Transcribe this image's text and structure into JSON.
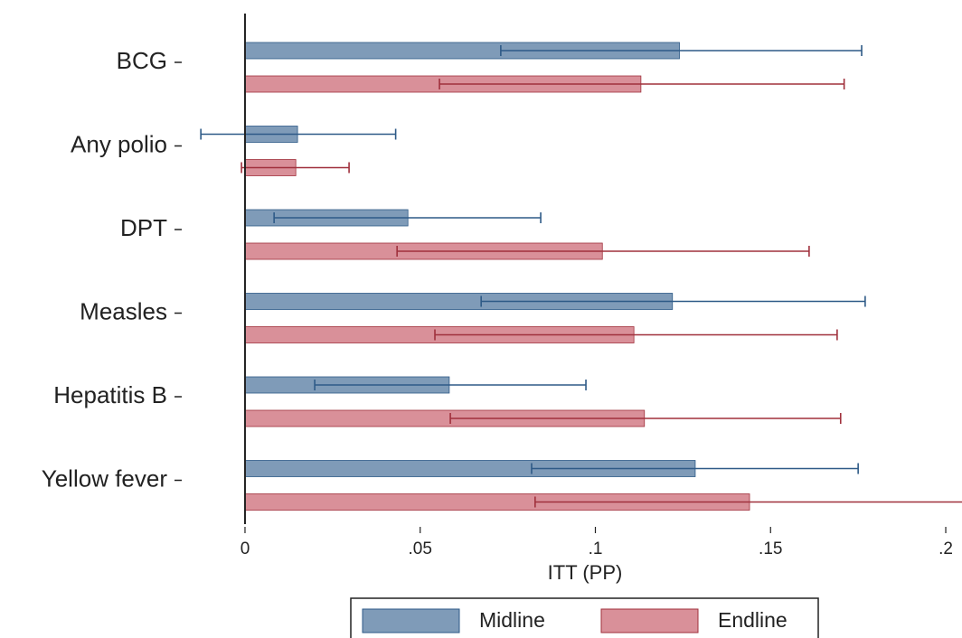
{
  "chart_data": {
    "type": "bar",
    "orientation": "horizontal",
    "categories": [
      "BCG",
      "Any polio",
      "DPT",
      "Measles",
      "Hepatitis B",
      "Yellow fever"
    ],
    "series": [
      {
        "name": "Midline",
        "color": "#7f9bb8",
        "error_color": "#2e5a87",
        "values": [
          0.124,
          0.015,
          0.0465,
          0.122,
          0.0583,
          0.1285
        ],
        "ci_low": [
          0.073,
          -0.0126,
          0.0083,
          0.0674,
          0.0199,
          0.0818
        ],
        "ci_high": [
          0.176,
          0.043,
          0.0844,
          0.177,
          0.0973,
          0.175
        ]
      },
      {
        "name": "Endline",
        "color": "#d99099",
        "error_color": "#a0303c",
        "values": [
          0.113,
          0.0145,
          0.102,
          0.111,
          0.114,
          0.144
        ],
        "ci_low": [
          0.0555,
          -0.001,
          0.0434,
          0.0542,
          0.0586,
          0.0828
        ],
        "ci_high": [
          0.171,
          0.0297,
          0.161,
          0.169,
          0.17,
          0.206
        ]
      }
    ],
    "x_label": "ITT (PP)",
    "xlim": [
      -0.013,
      0.205
    ],
    "xticks": [
      0,
      {
        "value": 0.05,
        "label": ".05"
      },
      {
        "value": 0.1,
        "label": ".1"
      },
      {
        "value": 0.15,
        "label": ".15"
      },
      {
        "value": 0.2,
        "label": ".2"
      }
    ],
    "legend": "bottom"
  }
}
